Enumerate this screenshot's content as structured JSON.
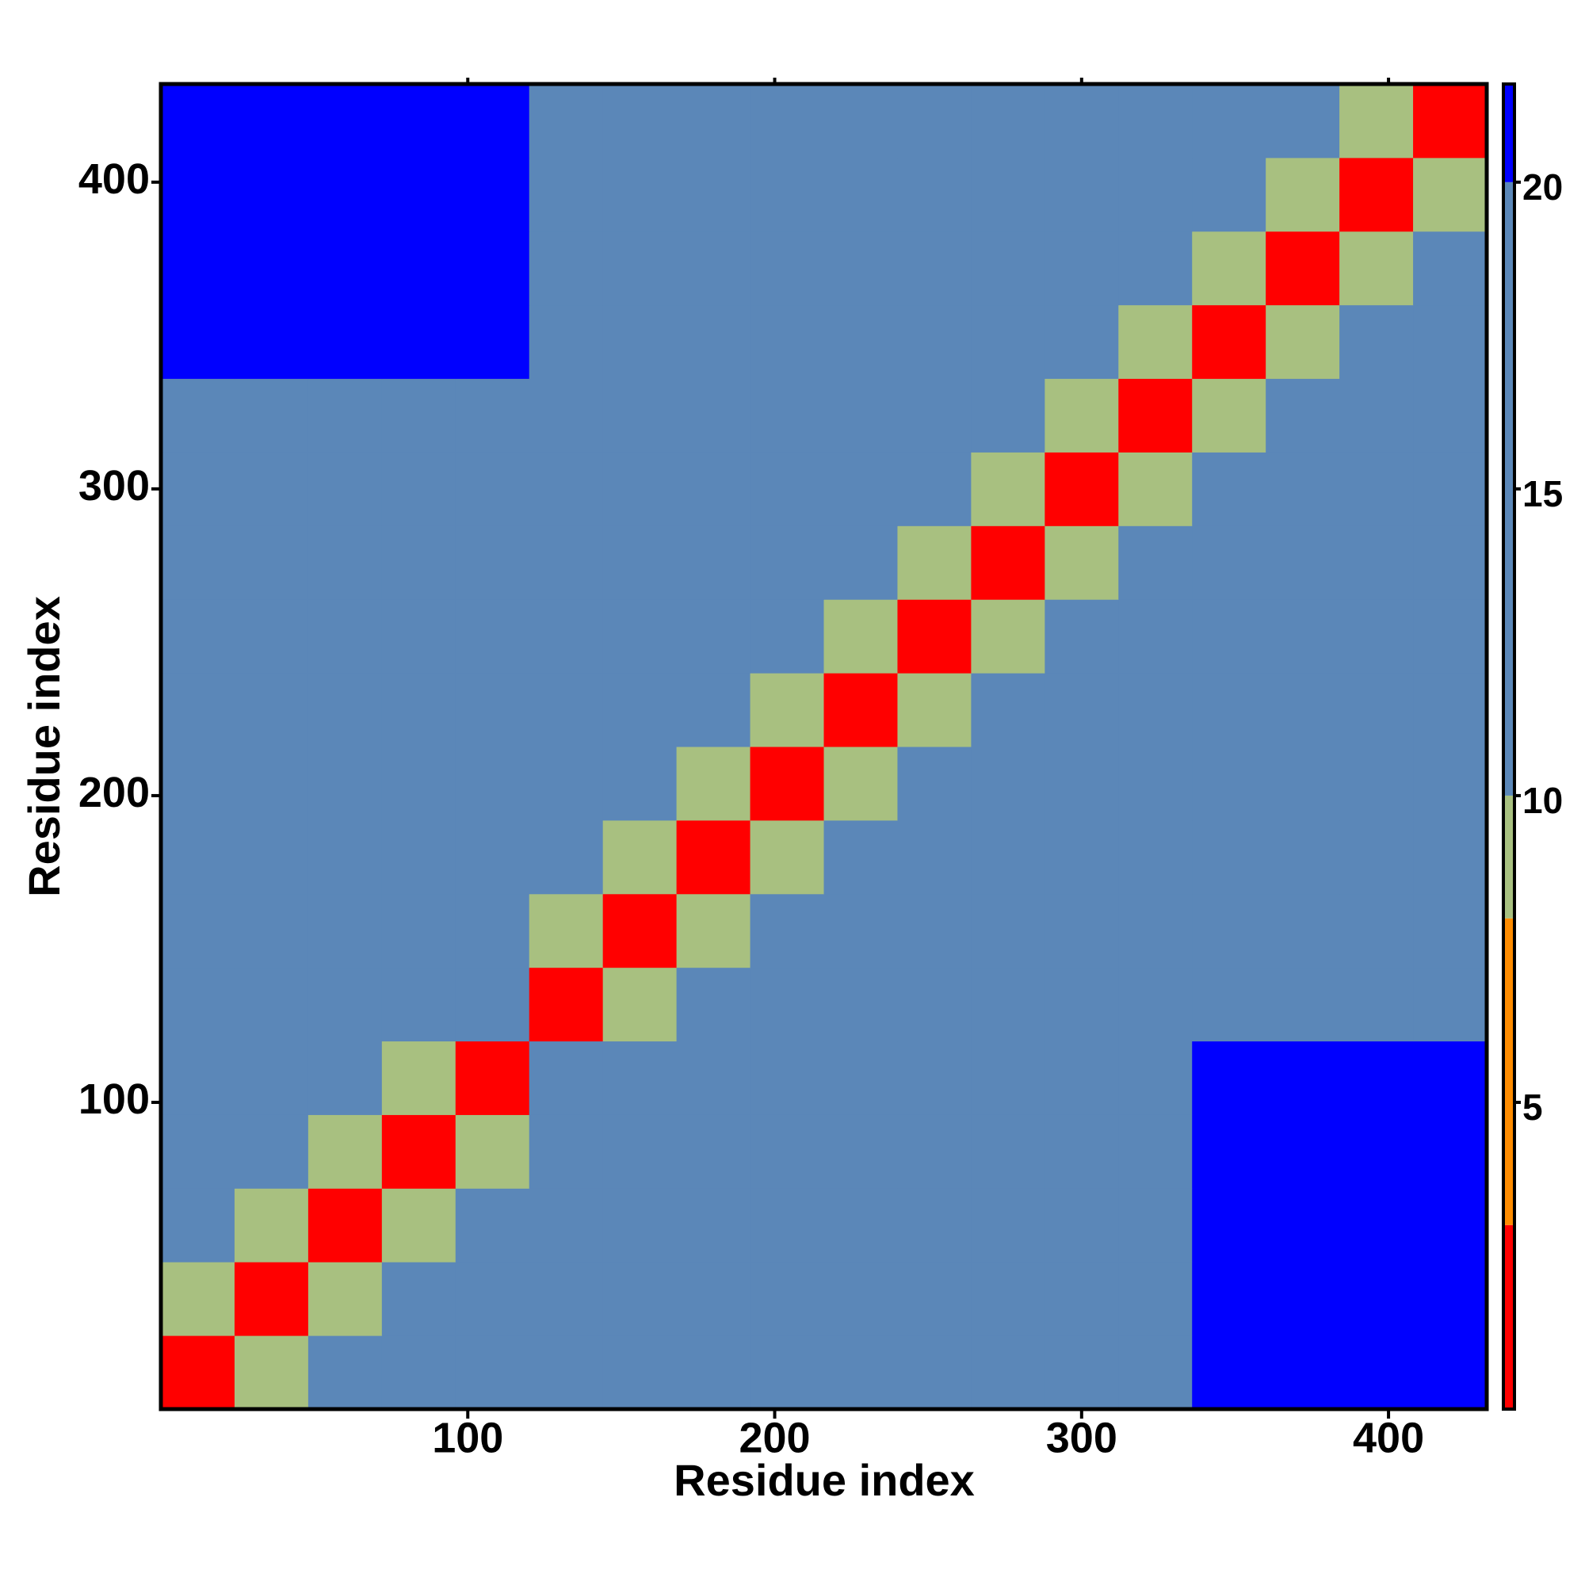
{
  "chart_data": {
    "type": "heatmap",
    "x_label": "Residue index",
    "y_label": "Residue index",
    "xbins": [
      0,
      24,
      48,
      72,
      96,
      120,
      144,
      168,
      192,
      216,
      240,
      264,
      288,
      312,
      336,
      360,
      384,
      408,
      432
    ],
    "ybins": [
      0,
      24,
      48,
      72,
      96,
      120,
      144,
      168,
      192,
      216,
      240,
      264,
      288,
      312,
      336,
      360,
      384,
      408,
      432
    ],
    "z": [
      [
        3,
        9,
        14,
        14,
        14,
        19,
        19,
        19,
        19,
        19,
        19,
        19,
        19,
        19,
        21,
        21,
        21,
        21
      ],
      [
        9,
        3,
        9,
        14,
        14,
        19,
        19,
        19,
        19,
        19,
        19,
        19,
        19,
        19,
        21,
        21,
        21,
        21
      ],
      [
        14,
        9,
        3,
        9,
        14,
        19,
        19,
        19,
        19,
        19,
        19,
        19,
        19,
        19,
        21,
        21,
        21,
        21
      ],
      [
        14,
        14,
        9,
        3,
        9,
        19,
        19,
        19,
        19,
        19,
        19,
        19,
        19,
        19,
        21,
        21,
        21,
        21
      ],
      [
        14,
        14,
        14,
        9,
        3,
        12,
        19,
        19,
        19,
        19,
        19,
        19,
        19,
        19,
        21,
        21,
        21,
        21
      ],
      [
        19,
        19,
        19,
        19,
        12,
        3,
        10,
        16,
        16,
        16,
        16,
        16,
        16,
        16,
        16,
        16,
        16,
        16
      ],
      [
        19,
        19,
        19,
        19,
        19,
        10,
        3,
        10,
        16,
        16,
        16,
        16,
        16,
        16,
        16,
        16,
        16,
        16
      ],
      [
        19,
        19,
        19,
        19,
        19,
        16,
        10,
        3,
        10,
        16,
        16,
        16,
        16,
        16,
        16,
        16,
        16,
        16
      ],
      [
        19,
        19,
        19,
        19,
        19,
        16,
        16,
        10,
        3,
        10,
        16,
        16,
        16,
        16,
        16,
        16,
        16,
        16
      ],
      [
        19,
        19,
        19,
        19,
        19,
        16,
        16,
        16,
        10,
        3,
        10,
        16,
        16,
        16,
        16,
        16,
        16,
        16
      ],
      [
        19,
        19,
        19,
        19,
        19,
        16,
        16,
        16,
        16,
        10,
        3,
        10,
        16,
        16,
        16,
        16,
        16,
        16
      ],
      [
        19,
        19,
        19,
        19,
        19,
        16,
        16,
        16,
        16,
        16,
        10,
        3,
        10,
        16,
        16,
        16,
        16,
        16
      ],
      [
        19,
        19,
        19,
        19,
        19,
        16,
        16,
        16,
        16,
        16,
        16,
        10,
        3,
        10,
        16,
        16,
        16,
        16
      ],
      [
        19,
        19,
        19,
        19,
        19,
        16,
        16,
        16,
        16,
        16,
        16,
        16,
        10,
        3,
        10,
        16,
        16,
        16
      ],
      [
        21,
        21,
        21,
        21,
        21,
        16,
        16,
        16,
        16,
        16,
        16,
        16,
        16,
        10,
        3,
        10,
        16,
        16
      ],
      [
        21,
        21,
        21,
        21,
        21,
        16,
        16,
        16,
        16,
        16,
        16,
        16,
        16,
        16,
        10,
        3,
        10,
        16
      ],
      [
        21,
        21,
        21,
        21,
        21,
        16,
        16,
        16,
        16,
        16,
        16,
        16,
        16,
        16,
        16,
        10,
        3,
        10
      ],
      [
        21,
        21,
        21,
        21,
        21,
        16,
        16,
        16,
        16,
        16,
        16,
        16,
        16,
        16,
        16,
        16,
        10,
        3
      ]
    ],
    "xlim": [
      0,
      432
    ],
    "ylim": [
      0,
      432
    ],
    "xticks": [
      100,
      200,
      300,
      400
    ],
    "yticks": [
      100,
      200,
      300,
      400
    ],
    "clim": [
      0,
      21.6
    ],
    "cticks": [
      5,
      10,
      15,
      20
    ],
    "colorscale": [
      {
        "from": 0,
        "to": 3,
        "color": "#ff0000"
      },
      {
        "from": 3,
        "to": 8,
        "color": "#ff8c00"
      },
      {
        "from": 8,
        "to": 10,
        "color": "#a8c080"
      },
      {
        "from": 10,
        "to": 20,
        "color": "#5b87b8"
      },
      {
        "from": 20,
        "to": 21.6,
        "color": "#0000ff"
      }
    ]
  }
}
